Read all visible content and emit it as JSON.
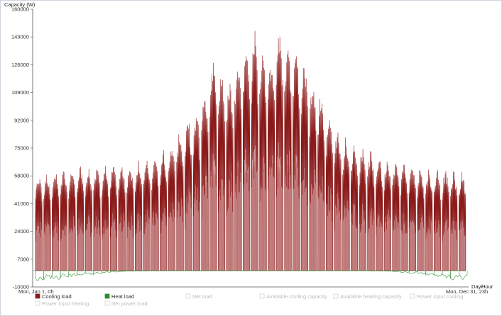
{
  "chart_data": {
    "type": "area",
    "ylabel": "Capacity (W)",
    "xlabel_lines": [
      "Day/",
      "Hour"
    ],
    "x_start_label": "Mon, Jan 1, 0h",
    "x_end_label": "Mon, Dec 31, 23h",
    "ylim": [
      -10000,
      160000
    ],
    "yticks": [
      "-10000",
      "7000",
      "24000",
      "41000",
      "58000",
      "75000",
      "92000",
      "109000",
      "126000",
      "143000",
      "160000"
    ],
    "ytick_values": [
      -10000,
      7000,
      24000,
      41000,
      58000,
      75000,
      92000,
      109000,
      126000,
      143000,
      160000
    ],
    "grid": false,
    "legend_position": "bottom",
    "weeks": 52,
    "series": [
      {
        "name": "Cooling load",
        "color": "#8b1a1a",
        "weekly_peak": [
          59000,
          60000,
          61000,
          62000,
          63000,
          64000,
          63000,
          64000,
          65000,
          66000,
          66000,
          67000,
          68000,
          69000,
          72000,
          76000,
          80000,
          86000,
          93000,
          98000,
          112000,
          132000,
          125000,
          118000,
          135000,
          142000,
          148000,
          140000,
          135000,
          150000,
          142000,
          138000,
          130000,
          118000,
          110000,
          98000,
          88000,
          82000,
          79000,
          76000,
          74000,
          72000,
          70000,
          68000,
          67000,
          66000,
          64000,
          63000,
          63000,
          62000,
          61000,
          61000
        ]
      },
      {
        "name": "Heat load",
        "color": "#2e8b2e",
        "weekly_min": [
          -6500,
          -6000,
          -5500,
          -4800,
          -4000,
          -3200,
          -2600,
          -2000,
          -1400,
          -900,
          -600,
          -400,
          -300,
          -200,
          -150,
          -100,
          -100,
          -100,
          -100,
          -100,
          -100,
          -100,
          -100,
          -100,
          -100,
          -100,
          -100,
          -100,
          -100,
          -100,
          -100,
          -100,
          -100,
          -100,
          -100,
          -100,
          -100,
          -100,
          -100,
          -100,
          -150,
          -250,
          -400,
          -700,
          -1200,
          -1800,
          -2500,
          -3200,
          -4000,
          -4800,
          -5800,
          -6500
        ]
      },
      {
        "name": "Power input heating",
        "color": "#d9c7c7",
        "visible": false
      },
      {
        "name": "Net power load",
        "color": "#e6b8b8",
        "weekly_peak": [
          52000,
          52000,
          53000,
          53000,
          53000,
          54000,
          54000,
          54000,
          55000,
          55000,
          55000,
          55000,
          56000,
          56000,
          56000,
          57000,
          58000,
          58000,
          59000,
          60000,
          60000,
          62000,
          62000,
          64000,
          64000,
          65000,
          66000,
          66000,
          66000,
          66000,
          66000,
          65000,
          64000,
          63000,
          62000,
          61000,
          60000,
          59000,
          58000,
          58000,
          57000,
          56000,
          56000,
          55000,
          55000,
          54000,
          54000,
          53000,
          53000,
          52000,
          52000,
          52000
        ]
      },
      {
        "name": "Net load",
        "color": "#dcdcdc",
        "visible": false
      },
      {
        "name": "Available cooling capacity",
        "color": "#dcdcdc",
        "visible": false
      },
      {
        "name": "Available heating capacity",
        "color": "#dcdcdc",
        "visible": false
      },
      {
        "name": "Power input cooling",
        "color": "#dcdcdc",
        "visible": false
      }
    ],
    "legend": [
      {
        "label": "Cooling load",
        "color": "#8b1a1a",
        "active": true
      },
      {
        "label": "Heat load",
        "color": "#2e8b2e",
        "active": true
      },
      {
        "label": "Net load",
        "color": "#ffffff",
        "active": false
      },
      {
        "label": "Available cooling capacity",
        "color": "#ffffff",
        "active": false
      },
      {
        "label": "Available heating capacity",
        "color": "#ffffff",
        "active": false
      },
      {
        "label": "Power input cooling",
        "color": "#ffffff",
        "active": false
      },
      {
        "label": "Power input heating",
        "color": "#ffffff",
        "active": false
      },
      {
        "label": "Net power load",
        "color": "#ffffff",
        "active": false
      }
    ]
  }
}
